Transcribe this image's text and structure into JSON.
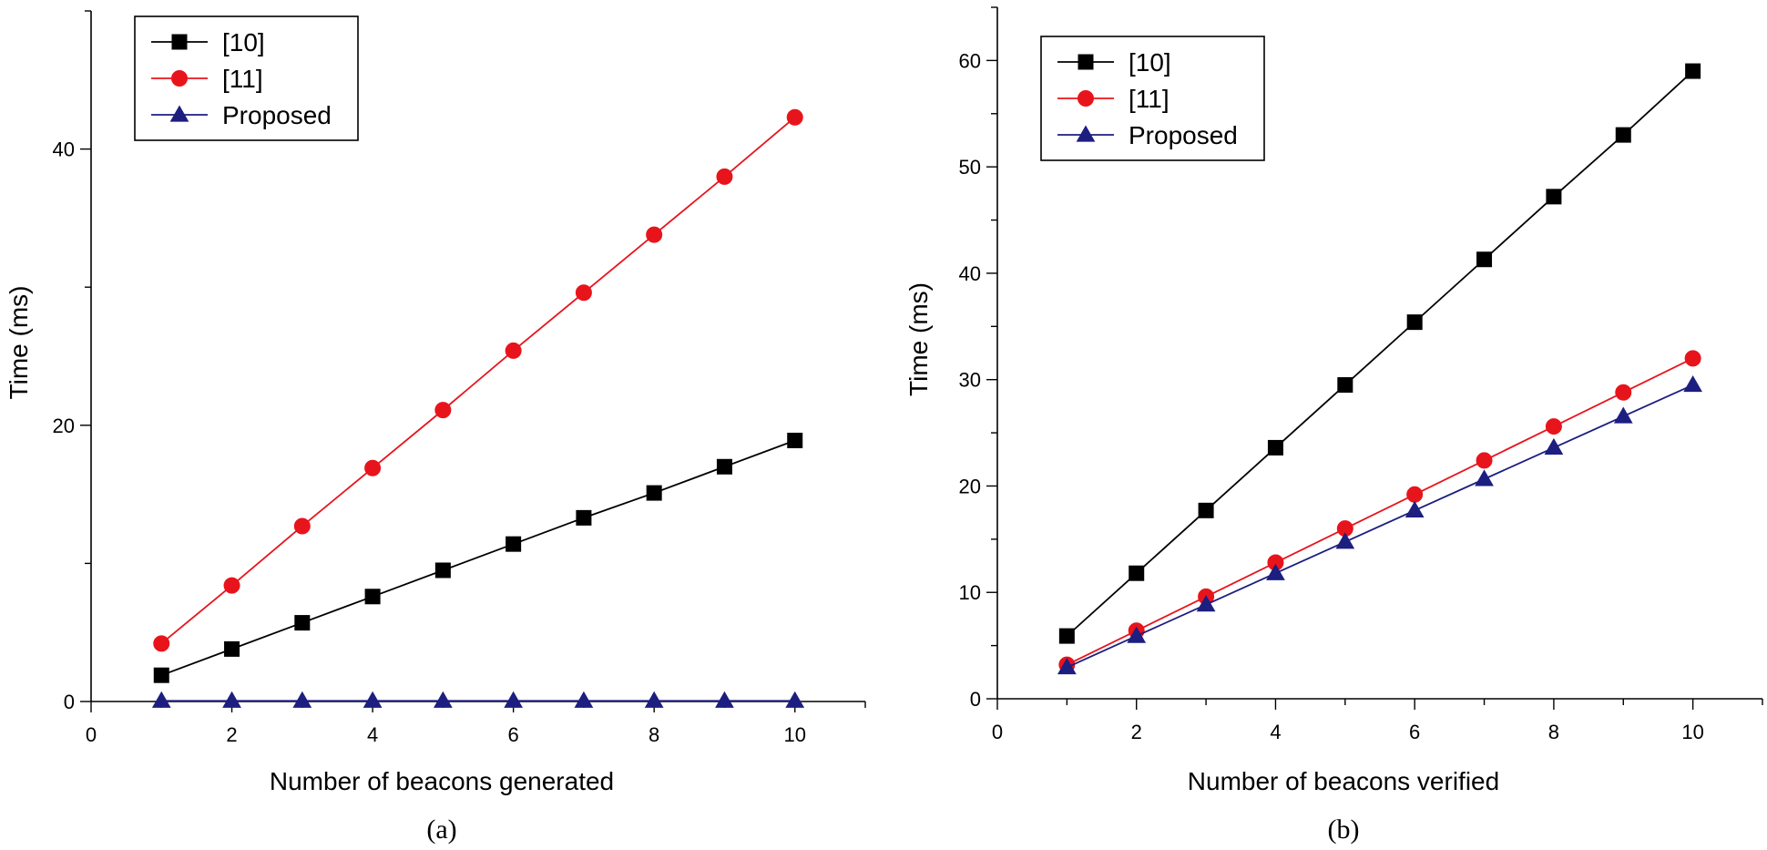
{
  "chart_data": [
    {
      "type": "line",
      "panel_label": "(a)",
      "xlabel": "Number of beacons generated",
      "ylabel": "Time (ms)",
      "xlim": [
        0,
        11
      ],
      "ylim": [
        0,
        50
      ],
      "xticks": [
        0,
        2,
        4,
        6,
        8,
        10
      ],
      "yticks": [
        0,
        20,
        40
      ],
      "legend_position": "top-left",
      "x": [
        1,
        2,
        3,
        4,
        5,
        6,
        7,
        8,
        9,
        10
      ],
      "series": [
        {
          "name": "[10]",
          "color": "#000000",
          "marker": "square",
          "values": [
            1.9,
            3.8,
            5.7,
            7.6,
            9.5,
            11.4,
            13.3,
            15.1,
            17.0,
            18.9
          ]
        },
        {
          "name": "[11]",
          "color": "#e8141c",
          "marker": "circle",
          "values": [
            4.2,
            8.4,
            12.7,
            16.9,
            21.1,
            25.4,
            29.6,
            33.8,
            38.0,
            42.3
          ]
        },
        {
          "name": "Proposed",
          "color": "#1c1e80",
          "marker": "triangle",
          "values": [
            0.05,
            0.05,
            0.05,
            0.05,
            0.05,
            0.05,
            0.05,
            0.05,
            0.05,
            0.05
          ]
        }
      ]
    },
    {
      "type": "line",
      "panel_label": "(b)",
      "xlabel": "Number of beacons verified",
      "ylabel": "Time (ms)",
      "xlim": [
        0,
        11
      ],
      "ylim": [
        0,
        65
      ],
      "xticks": [
        0,
        2,
        4,
        6,
        8,
        10
      ],
      "yticks": [
        0,
        10,
        20,
        30,
        40,
        50,
        60
      ],
      "legend_position": "top-left",
      "x": [
        1,
        2,
        3,
        4,
        5,
        6,
        7,
        8,
        9,
        10
      ],
      "series": [
        {
          "name": "[10]",
          "color": "#000000",
          "marker": "square",
          "values": [
            5.9,
            11.8,
            17.7,
            23.6,
            29.5,
            35.4,
            41.3,
            47.2,
            53.0,
            59.0
          ]
        },
        {
          "name": "[11]",
          "color": "#e8141c",
          "marker": "circle",
          "values": [
            3.2,
            6.4,
            9.6,
            12.8,
            16.0,
            19.2,
            22.4,
            25.6,
            28.8,
            32.0
          ]
        },
        {
          "name": "Proposed",
          "color": "#1c1e80",
          "marker": "triangle",
          "values": [
            2.95,
            5.9,
            8.85,
            11.8,
            14.75,
            17.7,
            20.65,
            23.6,
            26.55,
            29.5
          ]
        }
      ]
    }
  ]
}
